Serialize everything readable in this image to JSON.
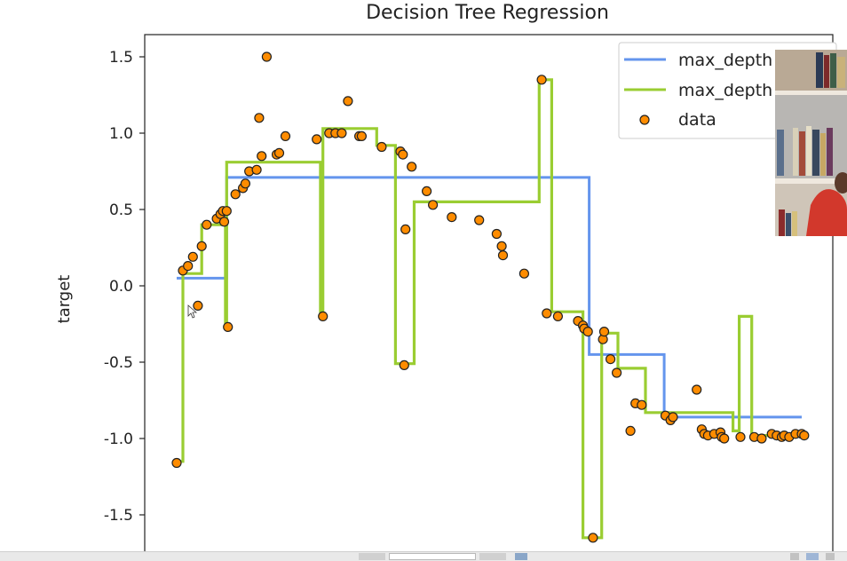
{
  "window": {
    "title": "Decision Tree Regression"
  },
  "chart_data": {
    "type": "line",
    "title": "Decision Tree Regression",
    "xlabel": "",
    "ylabel": "target",
    "xlim": [
      -0.2,
      5.2
    ],
    "ylim": [
      -1.75,
      1.6
    ],
    "yticks": [
      1.5,
      1.0,
      0.5,
      0.0,
      -0.5,
      -1.0,
      -1.5
    ],
    "grid": false,
    "legend_position": "top-right",
    "legend": [
      "max_depth",
      "max_depth",
      "data"
    ],
    "series": [
      {
        "name": "max_depth",
        "color": "#6495ed",
        "x": [
          0.0,
          0.4,
          0.4,
          3.3,
          3.3,
          3.9,
          3.9,
          5.0
        ],
        "y": [
          0.05,
          0.05,
          0.71,
          0.71,
          -0.45,
          -0.45,
          -0.86,
          -0.86
        ]
      },
      {
        "name": "max_depth",
        "color": "#9acd32",
        "x": [
          0.0,
          0.05,
          0.05,
          0.2,
          0.2,
          0.39,
          0.39,
          0.4,
          0.4,
          1.15,
          1.15,
          1.17,
          1.17,
          1.6,
          1.6,
          1.75,
          1.75,
          1.89,
          1.89,
          1.9,
          1.9,
          2.45,
          2.45,
          2.53,
          2.53,
          2.62,
          2.62,
          2.65,
          2.65,
          2.88,
          2.88,
          2.9,
          2.9,
          3.0,
          3.0,
          3.25,
          3.25,
          3.4,
          3.4,
          3.53,
          3.53,
          3.62,
          3.62,
          3.75,
          3.75,
          3.9,
          3.9,
          4.45,
          4.45,
          4.5,
          4.5,
          4.53,
          4.53,
          4.6,
          4.6,
          5.0
        ],
        "y": [
          -1.15,
          -1.15,
          0.08,
          0.08,
          0.4,
          0.4,
          -0.26,
          -0.26,
          0.81,
          0.81,
          -0.2,
          -0.2,
          1.03,
          1.03,
          0.92,
          0.92,
          -0.51,
          -0.51,
          -0.51,
          -0.51,
          0.55,
          0.55,
          0.55,
          0.55,
          0.55,
          0.55,
          0.55,
          0.55,
          0.55,
          0.55,
          0.55,
          0.55,
          1.35,
          1.35,
          -0.17,
          -0.17,
          -1.65,
          -1.65,
          -0.31,
          -0.31,
          -0.54,
          -0.54,
          -0.54,
          -0.54,
          -0.83,
          -0.83,
          -0.83,
          -0.83,
          -0.95,
          -0.95,
          -0.2,
          -0.2,
          -0.2,
          -0.2,
          -0.98,
          -0.98
        ]
      }
    ],
    "scatter": {
      "name": "data",
      "color": "#ff8c00",
      "x": [
        0.0,
        0.05,
        0.09,
        0.13,
        0.17,
        0.2,
        0.24,
        0.32,
        0.35,
        0.37,
        0.38,
        0.4,
        0.41,
        0.47,
        0.53,
        0.55,
        0.58,
        0.64,
        0.66,
        0.68,
        0.72,
        0.8,
        0.82,
        0.87,
        1.12,
        1.17,
        1.22,
        1.27,
        1.32,
        1.37,
        1.46,
        1.48,
        1.64,
        1.79,
        1.81,
        1.82,
        1.83,
        1.88,
        2.0,
        2.05,
        2.2,
        2.42,
        2.56,
        2.6,
        2.61,
        2.78,
        2.92,
        2.96,
        3.05,
        3.21,
        3.25,
        3.26,
        3.29,
        3.33,
        3.41,
        3.42,
        3.47,
        3.52,
        3.63,
        3.67,
        3.72,
        3.91,
        3.95,
        3.97,
        4.16,
        4.2,
        4.22,
        4.25,
        4.3,
        4.35,
        4.36,
        4.38,
        4.51,
        4.62,
        4.68,
        4.76,
        4.8,
        4.84,
        4.86,
        4.9,
        4.95,
        5.0,
        5.02
      ],
      "y": [
        -1.16,
        0.1,
        0.13,
        0.19,
        -0.13,
        0.26,
        0.4,
        0.44,
        0.47,
        0.49,
        0.42,
        0.49,
        -0.27,
        0.6,
        0.64,
        0.67,
        0.75,
        0.76,
        1.1,
        0.85,
        1.5,
        0.86,
        0.87,
        0.98,
        0.96,
        -0.2,
        1.0,
        1.0,
        1.0,
        1.21,
        0.98,
        0.98,
        0.91,
        0.88,
        0.86,
        -0.52,
        0.37,
        0.78,
        0.62,
        0.53,
        0.45,
        0.43,
        0.34,
        0.26,
        0.2,
        0.08,
        1.35,
        -0.18,
        -0.2,
        -0.23,
        -0.26,
        -0.28,
        -0.3,
        -1.65,
        -0.35,
        -0.3,
        -0.48,
        -0.57,
        -0.95,
        -0.77,
        -0.78,
        -0.85,
        -0.88,
        -0.86,
        -0.68,
        -0.94,
        -0.97,
        -0.98,
        -0.97,
        -0.96,
        -0.99,
        -1.0,
        -0.99,
        -0.99,
        -1.0,
        -0.97,
        -0.98,
        -0.99,
        -0.98,
        -0.99,
        -0.97,
        -0.97,
        -0.98
      ]
    }
  }
}
